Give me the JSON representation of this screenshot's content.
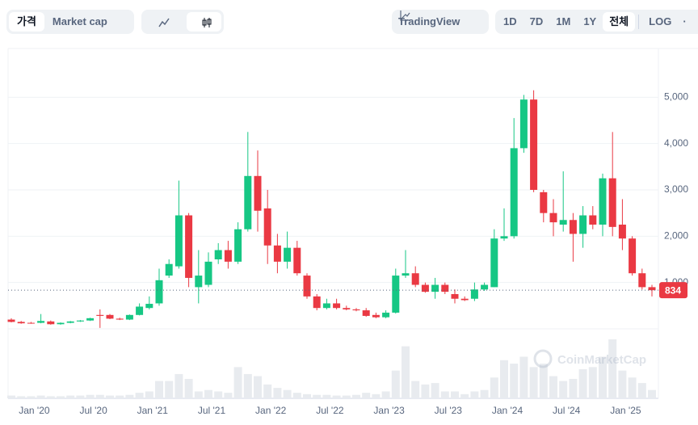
{
  "toolbar": {
    "price": "가격",
    "market_cap": "Market cap",
    "tradingview": "TradingView",
    "ranges": [
      "1D",
      "7D",
      "1M",
      "1Y",
      "전체"
    ],
    "log": "LOG"
  },
  "chart_data": {
    "type": "candlestick",
    "watermark": "CoinMarketCap",
    "categories": [
      null,
      null,
      "Jan '20",
      null,
      null,
      null,
      null,
      null,
      "Jul '20",
      null,
      null,
      null,
      null,
      null,
      "Jan '21",
      null,
      null,
      null,
      null,
      null,
      "Jul '21",
      null,
      null,
      null,
      null,
      null,
      "Jan '22",
      null,
      null,
      null,
      null,
      null,
      "Jul '22",
      null,
      null,
      null,
      null,
      null,
      "Jan '23",
      null,
      null,
      null,
      null,
      null,
      "Jul '23",
      null,
      null,
      null,
      null,
      null,
      "Jan '24",
      null,
      null,
      null,
      null,
      null,
      "Jul '24",
      null,
      null,
      null,
      null,
      null,
      "Jan '25",
      null,
      null,
      null
    ],
    "open": [
      200,
      150,
      130,
      130,
      160,
      100,
      130,
      160,
      180,
      300,
      300,
      220,
      200,
      300,
      450,
      550,
      1150,
      1350,
      2450,
      900,
      950,
      1500,
      1700,
      1450,
      2150,
      3300,
      2600,
      1800,
      1450,
      1750,
      1150,
      700,
      450,
      550,
      450,
      420,
      400,
      300,
      250,
      350,
      1150,
      1200,
      950,
      800,
      950,
      750,
      650,
      650,
      850,
      900,
      1950,
      2000,
      3900,
      4950,
      2950,
      2500,
      2250,
      2350,
      2050,
      2450,
      2250,
      3250,
      2250,
      1950,
      1200,
      900
    ],
    "high": [
      230,
      170,
      150,
      320,
      180,
      140,
      170,
      190,
      240,
      420,
      320,
      240,
      310,
      550,
      700,
      1300,
      1500,
      3200,
      2500,
      1700,
      1650,
      1850,
      1900,
      2300,
      4250,
      3850,
      3000,
      2050,
      2100,
      1900,
      1200,
      750,
      650,
      650,
      500,
      450,
      450,
      350,
      400,
      1300,
      1700,
      1350,
      1000,
      1100,
      1000,
      850,
      700,
      1000,
      1000,
      2150,
      2600,
      4550,
      5050,
      5150,
      3000,
      2800,
      3400,
      2500,
      2650,
      2650,
      3350,
      4250,
      2800,
      2000,
      1300,
      950
    ],
    "low": [
      140,
      110,
      110,
      120,
      90,
      90,
      120,
      150,
      170,
      20,
      210,
      190,
      190,
      290,
      420,
      500,
      1100,
      1300,
      900,
      550,
      900,
      1400,
      1300,
      1400,
      2100,
      2100,
      1400,
      1200,
      1300,
      1150,
      650,
      400,
      420,
      420,
      400,
      380,
      260,
      230,
      230,
      330,
      1100,
      900,
      780,
      650,
      750,
      550,
      600,
      600,
      820,
      900,
      1900,
      1950,
      3800,
      2950,
      2300,
      2000,
      2100,
      1450,
      1750,
      2150,
      2000,
      2000,
      1700,
      1150,
      850,
      700
    ],
    "close": [
      150,
      120,
      120,
      170,
      100,
      130,
      160,
      180,
      230,
      280,
      220,
      200,
      300,
      480,
      540,
      1050,
      1400,
      2450,
      1100,
      1150,
      1450,
      1700,
      1450,
      2150,
      3300,
      2550,
      1800,
      1450,
      1750,
      1200,
      700,
      450,
      550,
      450,
      420,
      400,
      280,
      250,
      350,
      1150,
      1200,
      950,
      800,
      950,
      800,
      650,
      620,
      850,
      950,
      1950,
      2000,
      3900,
      4950,
      3000,
      2500,
      2300,
      2350,
      2050,
      2450,
      2250,
      3250,
      2200,
      1950,
      1200,
      900,
      834
    ],
    "volume": [
      4,
      3,
      3,
      4,
      3,
      3,
      4,
      4,
      5,
      5,
      4,
      4,
      5,
      8,
      10,
      25,
      25,
      35,
      28,
      10,
      12,
      10,
      8,
      45,
      35,
      32,
      20,
      15,
      12,
      8,
      6,
      5,
      5,
      4,
      4,
      5,
      8,
      6,
      10,
      40,
      75,
      25,
      20,
      22,
      10,
      10,
      6,
      10,
      12,
      30,
      55,
      50,
      60,
      45,
      50,
      32,
      25,
      28,
      42,
      45,
      60,
      85,
      40,
      30,
      22,
      12
    ],
    "up_color": "#16c784",
    "down_color": "#ea3943",
    "last_price": 834,
    "ylim": [
      0,
      6000
    ],
    "yticks": [
      {
        "value": 1000,
        "label": "1,000"
      },
      {
        "value": 2000,
        "label": "2,000"
      },
      {
        "value": 3000,
        "label": "3,000"
      },
      {
        "value": 4000,
        "label": "4,000"
      },
      {
        "value": 5000,
        "label": "5,000"
      }
    ],
    "grid": true
  }
}
